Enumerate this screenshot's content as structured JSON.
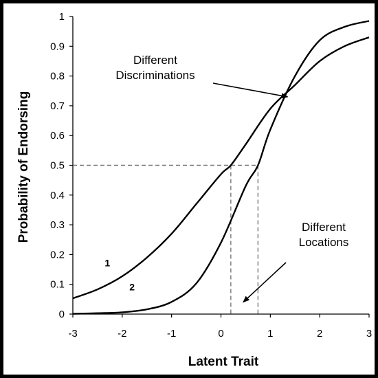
{
  "chart_data": {
    "type": "line",
    "title": "",
    "xlabel": "Latent Trait",
    "ylabel": "Probability of Endorsing",
    "xlim": [
      -3,
      3
    ],
    "ylim": [
      0,
      1
    ],
    "x_ticks": [
      "-3",
      "-2",
      "-1",
      "0",
      "1",
      "2",
      "3"
    ],
    "y_ticks": [
      "0",
      "0.1",
      "0.2",
      "0.3",
      "0.4",
      "0.5",
      "0.6",
      "0.7",
      "0.8",
      "0.9",
      "1"
    ],
    "grid": false,
    "legend": "none",
    "series": [
      {
        "label": "1",
        "x": [
          -3,
          -2.5,
          -2,
          -1.5,
          -1,
          -0.5,
          0,
          0.2,
          0.5,
          1,
          1.5,
          2,
          2.5,
          3
        ],
        "y": [
          0.053,
          0.083,
          0.127,
          0.19,
          0.27,
          0.37,
          0.47,
          0.5,
          0.57,
          0.69,
          0.77,
          0.85,
          0.9,
          0.93
        ]
      },
      {
        "label": "2",
        "x": [
          -3,
          -2.5,
          -2,
          -1.5,
          -1,
          -0.5,
          0,
          0.5,
          0.75,
          1,
          1.5,
          2,
          2.5,
          3
        ],
        "y": [
          0.001,
          0.003,
          0.006,
          0.016,
          0.041,
          0.103,
          0.24,
          0.43,
          0.5,
          0.62,
          0.8,
          0.92,
          0.965,
          0.985
        ]
      }
    ],
    "reference_lines": {
      "y": 0.5,
      "x_values": [
        0.2,
        0.75
      ]
    },
    "annotations": [
      {
        "lines": [
          "Different",
          "Discriminations"
        ],
        "points_to": [
          1.35,
          0.73
        ]
      },
      {
        "lines": [
          "Different",
          "Locations"
        ],
        "points_to": [
          0.45,
          0.04
        ]
      }
    ]
  }
}
